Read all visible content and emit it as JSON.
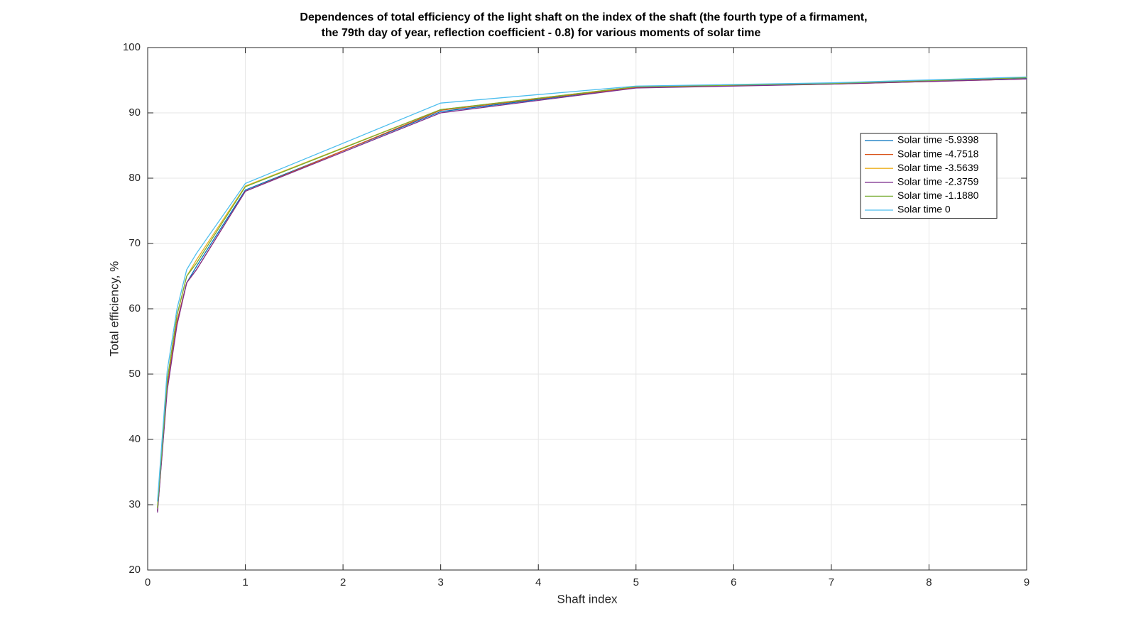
{
  "chart_data": {
    "type": "line",
    "title": [
      "Dependences of total efficiency of the light shaft on the index of the shaft (the fourth type of a firmament,",
      "the 79th day of year, reflection coefficient - 0.8) for various moments of solar time"
    ],
    "x_label": "Shaft index",
    "y_label": "Total efficiency, %",
    "x": [
      0.1,
      0.2,
      0.3,
      0.4,
      0.5,
      1,
      3,
      5,
      7,
      9
    ],
    "series": [
      {
        "name": "Solar time -5.9398",
        "color": "#0072BD",
        "values": [
          29,
          48,
          58,
          64,
          66.5,
          78.2,
          90.2,
          93.9,
          94.5,
          95.3
        ]
      },
      {
        "name": "Solar time -4.7518",
        "color": "#D95319",
        "values": [
          29,
          48,
          58,
          64,
          66,
          78,
          90.4,
          93.9,
          94.4,
          95.2
        ]
      },
      {
        "name": "Solar time -3.5639",
        "color": "#EDB120",
        "values": [
          29.5,
          49,
          59,
          65,
          67.5,
          78.8,
          90.5,
          94.0,
          94.5,
          95.4
        ]
      },
      {
        "name": "Solar time -2.3759",
        "color": "#7E2F8E",
        "values": [
          28.8,
          47.5,
          57.5,
          64,
          66,
          78,
          90,
          93.8,
          94.4,
          95.2
        ]
      },
      {
        "name": "Solar time -1.1880",
        "color": "#77AC30",
        "values": [
          29.5,
          49,
          59,
          65,
          67,
          78.7,
          90.5,
          94.0,
          94.5,
          95.4
        ]
      },
      {
        "name": "Solar time 0",
        "color": "#4DBEEE",
        "values": [
          30.5,
          50.5,
          60,
          66,
          68.5,
          79.2,
          91.5,
          94.1,
          94.6,
          95.5
        ]
      }
    ],
    "xlim": [
      0,
      9
    ],
    "xticks": [
      0,
      1,
      2,
      3,
      4,
      5,
      6,
      7,
      8,
      9
    ],
    "ylim": [
      20,
      100
    ],
    "yticks": [
      20,
      30,
      40,
      50,
      60,
      70,
      80,
      90,
      100
    ],
    "grid": true,
    "legend": "upper-right"
  }
}
